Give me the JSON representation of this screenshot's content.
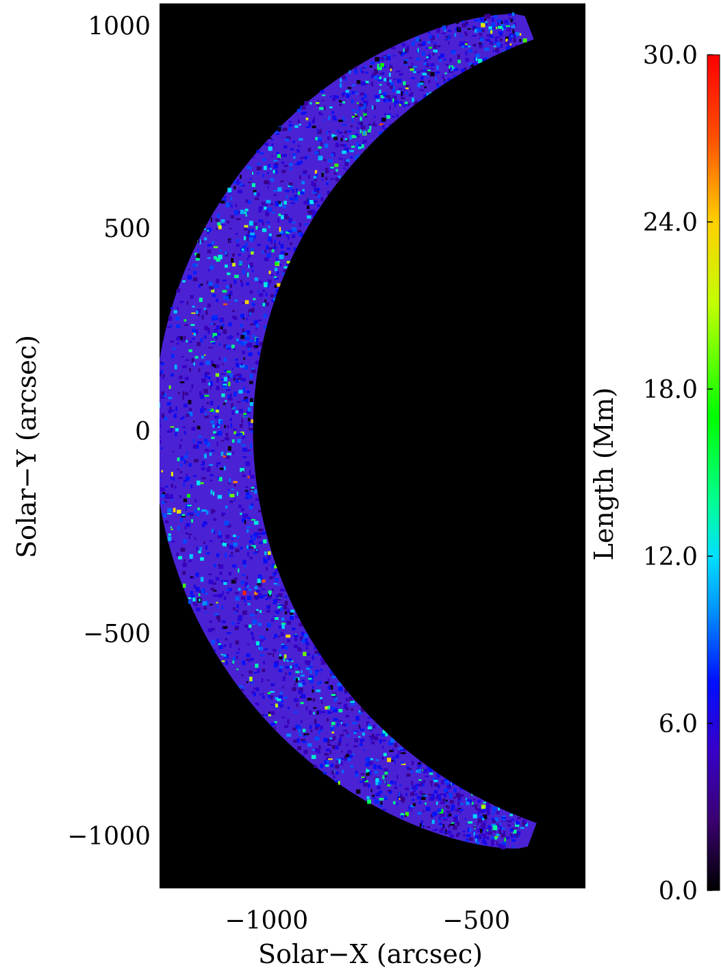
{
  "chart_data": {
    "type": "heatmap",
    "title": "",
    "xlabel": "Solar−X (arcsec)",
    "ylabel": "Solar−Y (arcsec)",
    "xlim": [
      -1255,
      -240
    ],
    "ylim": [
      -1130,
      1055
    ],
    "x_ticks": [
      {
        "value": -1000,
        "label": "−1000"
      },
      {
        "value": -500,
        "label": "−500"
      }
    ],
    "y_ticks": [
      {
        "value": 1000,
        "label": "1000"
      },
      {
        "value": 500,
        "label": "500"
      },
      {
        "value": 0,
        "label": "0"
      },
      {
        "value": -500,
        "label": "−500"
      },
      {
        "value": -1000,
        "label": "−1000"
      }
    ],
    "disk_limb": {
      "center": [
        0,
        0
      ],
      "radius_arcsec": 1032
    },
    "colorbar": {
      "label": "Length (Mm)",
      "range": [
        0,
        30
      ],
      "tick_labels": [
        "0.0",
        "6.0",
        "12.0",
        "18.0",
        "24.0",
        "30.0"
      ],
      "tick_values": [
        0,
        6,
        12,
        18,
        24,
        30
      ],
      "colormap": [
        {
          "value": 0,
          "color": "#000000"
        },
        {
          "value": 2.5,
          "color": "#3a0070"
        },
        {
          "value": 5,
          "color": "#3800c8"
        },
        {
          "value": 7.5,
          "color": "#0010ff"
        },
        {
          "value": 10,
          "color": "#0090ff"
        },
        {
          "value": 12,
          "color": "#00e0ff"
        },
        {
          "value": 14,
          "color": "#00ff90"
        },
        {
          "value": 17,
          "color": "#00ff00"
        },
        {
          "value": 21,
          "color": "#c0ff00"
        },
        {
          "value": 24,
          "color": "#ffd000"
        },
        {
          "value": 27,
          "color": "#ff5000"
        },
        {
          "value": 30,
          "color": "#ff0000"
        }
      ]
    },
    "background_color": "#000000",
    "dominant_color": "#4a22d4"
  }
}
